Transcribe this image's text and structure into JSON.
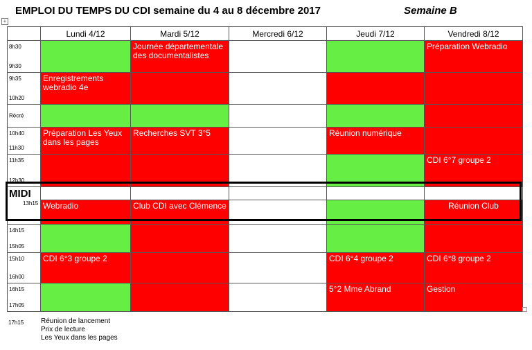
{
  "header": {
    "title": "EMPLOI DU TEMPS DU CDI semaine du 4 au 8 décembre 2017",
    "week": "Semaine B"
  },
  "days": [
    "Lundi 4/12",
    "Mardi 5/12",
    "Mercredi 6/12",
    "Jeudi 7/12",
    "Vendredi 8/12"
  ],
  "slots": [
    {
      "start": "8h30",
      "end": "9h30",
      "cells": [
        {
          "color": "green",
          "text": ""
        },
        {
          "color": "red",
          "text": "Journée  départementale des documentalistes"
        },
        {
          "color": "white",
          "text": ""
        },
        {
          "color": "green",
          "text": ""
        },
        {
          "color": "red",
          "text": "Préparation Webradio"
        }
      ]
    },
    {
      "start": "9h35",
      "end": "10h20",
      "cells": [
        {
          "color": "red",
          "text": "Enregistrements webradio 4e"
        },
        {
          "color": "red",
          "text": ""
        },
        {
          "color": "white",
          "text": ""
        },
        {
          "color": "red",
          "text": ""
        },
        {
          "color": "red",
          "text": ""
        }
      ]
    },
    {
      "start": "Récré",
      "end": "",
      "cells": [
        {
          "color": "green",
          "text": ""
        },
        {
          "color": "green",
          "text": ""
        },
        {
          "color": "white",
          "text": ""
        },
        {
          "color": "green",
          "text": ""
        },
        {
          "color": "red",
          "text": ""
        }
      ]
    },
    {
      "start": "10h40",
      "end": "11h30",
      "cells": [
        {
          "color": "red",
          "text": "Préparation Les Yeux dans les pages"
        },
        {
          "color": "red",
          "text": "Recherches SVT 3°5"
        },
        {
          "color": "white",
          "text": ""
        },
        {
          "color": "red",
          "text": "Réunion numérique"
        },
        {
          "color": "red",
          "text": ""
        }
      ]
    },
    {
      "start": "11h35",
      "end": "12h30",
      "cells": [
        {
          "color": "red",
          "text": ""
        },
        {
          "color": "red",
          "text": ""
        },
        {
          "color": "white",
          "text": ""
        },
        {
          "color": "green",
          "text": ""
        },
        {
          "color": "red",
          "text": "CDI 6°7 groupe 2"
        }
      ]
    }
  ],
  "midi": {
    "label": "MIDI",
    "time": "13h15",
    "cells": [
      {
        "color": "red",
        "text": "Webradio"
      },
      {
        "color": "red",
        "text": "Club CDI avec Clémence"
      },
      {
        "color": "white",
        "text": ""
      },
      {
        "color": "green",
        "text": ""
      },
      {
        "color": "red",
        "text": "Réunion Club"
      }
    ]
  },
  "slots_after": [
    {
      "start": "14h15",
      "end": "15h05",
      "cells": [
        {
          "color": "green",
          "text": ""
        },
        {
          "color": "red",
          "text": ""
        },
        {
          "color": "white",
          "text": ""
        },
        {
          "color": "green",
          "text": ""
        },
        {
          "color": "red",
          "text": ""
        }
      ]
    },
    {
      "start": "15h10",
      "end": "16h00",
      "cells": [
        {
          "color": "red",
          "text": "CDI 6°3 groupe 2"
        },
        {
          "color": "red",
          "text": ""
        },
        {
          "color": "white",
          "text": ""
        },
        {
          "color": "red",
          "text": "CDI 6°4 groupe 2"
        },
        {
          "color": "red",
          "text": "CDI 6°8 groupe 2"
        }
      ]
    },
    {
      "start": "16h15",
      "end": "17h05",
      "cells": [
        {
          "color": "green",
          "text": ""
        },
        {
          "color": "red",
          "text": ""
        },
        {
          "color": "white",
          "text": ""
        },
        {
          "color": "red",
          "text": "5°2 Mme Abrand"
        },
        {
          "color": "red",
          "text": "Gestion"
        }
      ]
    }
  ],
  "footer": {
    "time": "17h15",
    "lines": [
      "Réunion de lancement",
      "Prix de lecture",
      "Les Yeux dans les pages"
    ]
  },
  "colors": {
    "busy": "#ff0000",
    "free": "#66ee44",
    "closed": "#ffffff"
  }
}
